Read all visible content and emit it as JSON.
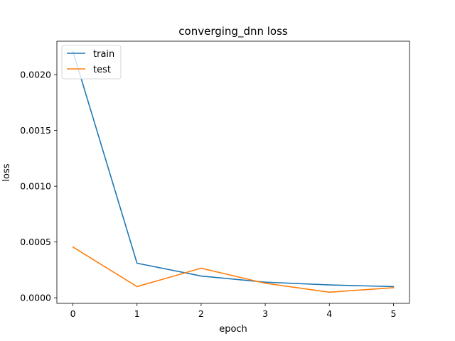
{
  "chart_data": {
    "type": "line",
    "title": "converging_dnn loss",
    "xlabel": "epoch",
    "ylabel": "loss",
    "x": [
      0,
      1,
      2,
      3,
      4,
      5
    ],
    "xlim": [
      -0.25,
      5.25
    ],
    "ylim": [
      -5e-05,
      0.0023
    ],
    "xticks": [
      0,
      1,
      2,
      3,
      4,
      5
    ],
    "xtick_labels": [
      "0",
      "1",
      "2",
      "3",
      "4",
      "5"
    ],
    "yticks": [
      0,
      0.0005,
      0.001,
      0.0015,
      0.002
    ],
    "ytick_labels": [
      "0.0000",
      "0.0005",
      "0.0010",
      "0.0015",
      "0.0020"
    ],
    "grid": false,
    "legend_position": "upper-left",
    "series": [
      {
        "name": "train",
        "color": "#1f77b4",
        "values": [
          0.00221,
          0.00031,
          0.000195,
          0.00014,
          0.000115,
          0.0001
        ]
      },
      {
        "name": "test",
        "color": "#ff7f0e",
        "values": [
          0.000455,
          0.0001,
          0.000265,
          0.00013,
          5e-05,
          9e-05
        ]
      }
    ]
  }
}
